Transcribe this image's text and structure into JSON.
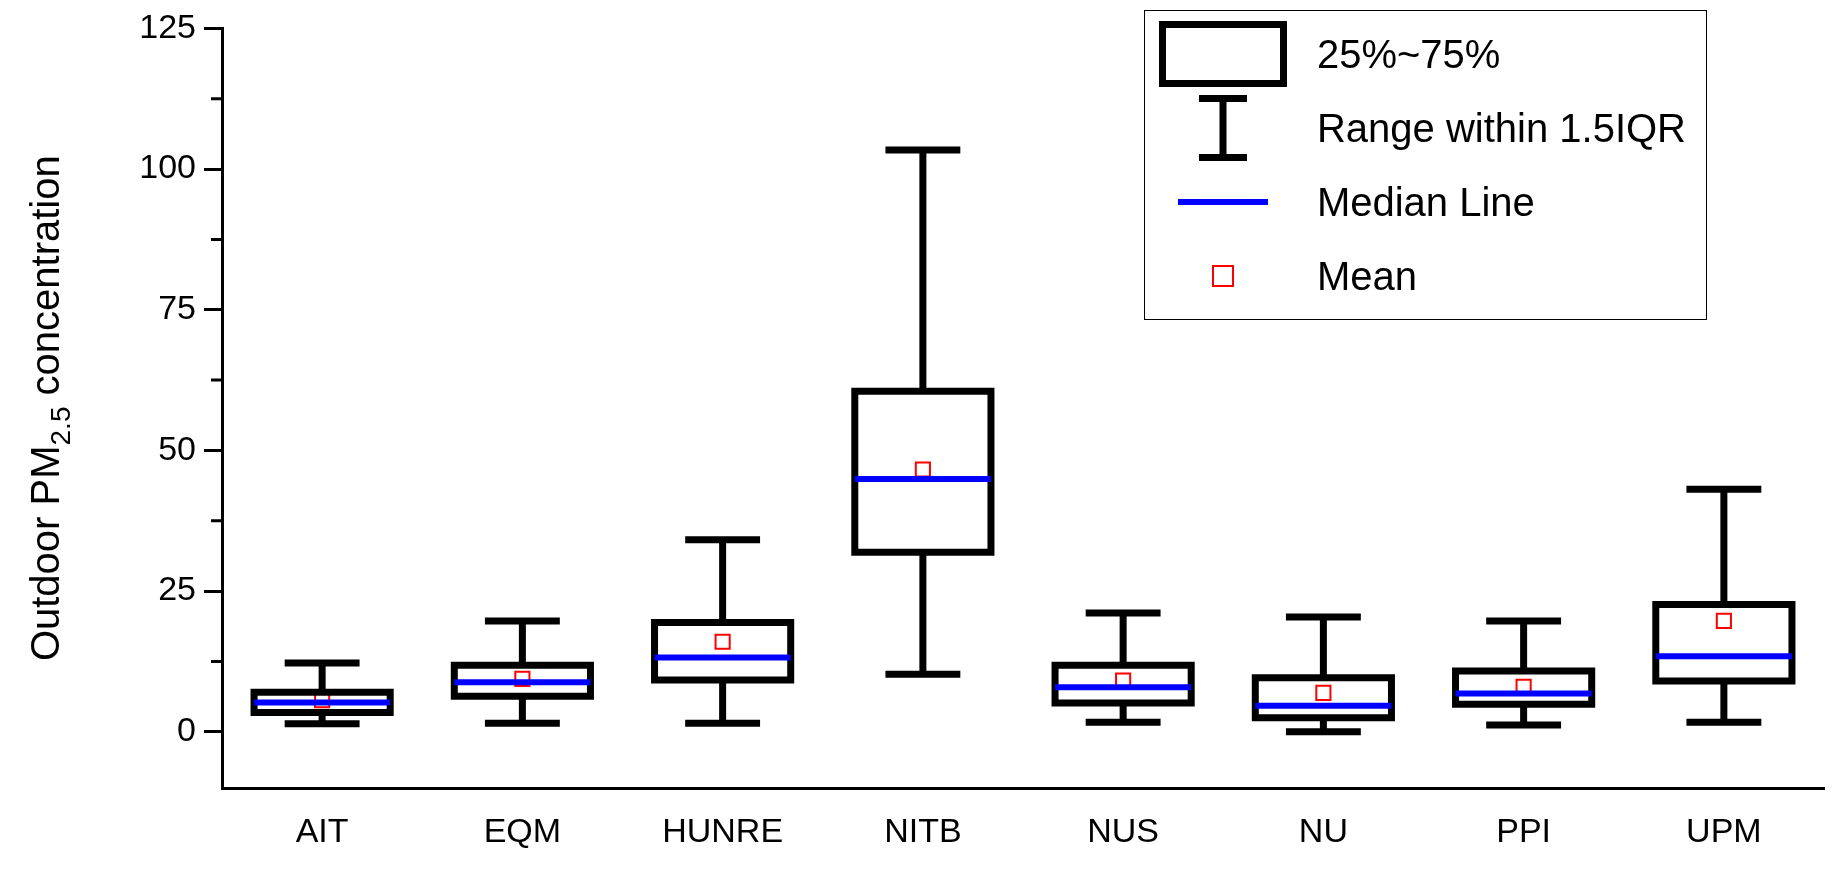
{
  "chart_data": {
    "type": "box",
    "ylabel": "Outdoor PM$_{2.5}$ concentration",
    "categories": [
      "AIT",
      "EQM",
      "HUNRE",
      "NITB",
      "NUS",
      "NU",
      "PPI",
      "UPM"
    ],
    "color": "#000000",
    "boxes": [
      {
        "low": 1.4,
        "q1": 3.4,
        "median": 5.2,
        "q3": 7.0,
        "high": 12.2,
        "mean": 5.6
      },
      {
        "low": 1.5,
        "q1": 6.3,
        "median": 8.8,
        "q3": 11.8,
        "high": 19.7,
        "mean": 9.4
      },
      {
        "low": 1.5,
        "q1": 9.2,
        "median": 13.2,
        "q3": 19.4,
        "high": 34.1,
        "mean": 16.0
      },
      {
        "low": 10.2,
        "q1": 31.9,
        "median": 44.9,
        "q3": 60.5,
        "high": 103.4,
        "mean": 46.6
      },
      {
        "low": 1.7,
        "q1": 5.1,
        "median": 7.9,
        "q3": 11.8,
        "high": 21.1,
        "mean": 9.1
      },
      {
        "low": 0,
        "q1": 2.5,
        "median": 4.6,
        "q3": 9.6,
        "high": 20.4,
        "mean": 6.9
      },
      {
        "low": 1.2,
        "q1": 4.9,
        "median": 6.8,
        "q3": 10.8,
        "high": 19.7,
        "mean": 8.0
      },
      {
        "low": 1.7,
        "q1": 9.0,
        "median": 13.4,
        "q3": 22.6,
        "high": 43.1,
        "mean": 19.7
      }
    ],
    "ylim": [
      -10,
      125
    ],
    "yticks": [
      0,
      {
        "value": 12.5,
        "label": null
      },
      25,
      {
        "value": 37.5,
        "label": null
      },
      50,
      {
        "value": 62.5,
        "label": null
      },
      75,
      {
        "value": 87.5,
        "label": null
      },
      100,
      {
        "value": 112.5,
        "label": null
      },
      125
    ],
    "grid": false,
    "marker": "square",
    "annotations": [
      "25%~75%",
      "Range within 1.5IQR",
      "Median Line",
      "Mean"
    ]
  }
}
